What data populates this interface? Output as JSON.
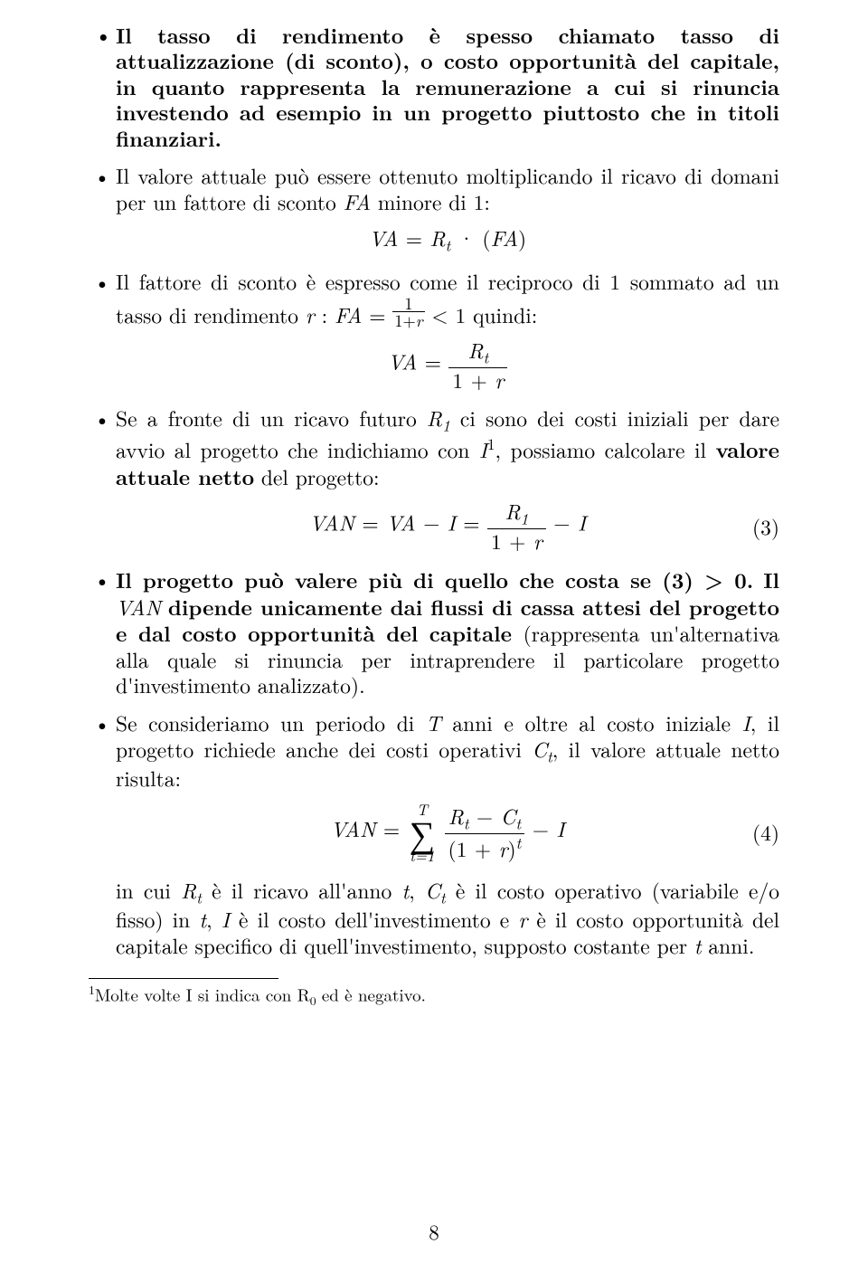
{
  "page": {
    "number": "8",
    "background_color": "#ffffff",
    "text_color": "#000000",
    "body_fontsize_pt": 18,
    "footnote_fontsize_pt": 14
  },
  "bullets": {
    "b1": "Il tasso di rendimento è spesso chiamato tasso di attualizzazione (di sconto), o costo opportunità del capitale, in quanto rappresenta la remunerazione a cui si rinuncia investendo ad esempio in un progetto piuttosto che in titoli finanziari.",
    "b2_pre": "Il valore attuale può essere ottenuto moltiplicando il ricavo di domani per un fattore di sconto ",
    "b2_fa": "FA",
    "b2_post": " minore di 1:",
    "b3_pre": "Il fattore di sconto è espresso come il reciproco di 1 sommato ad un tasso di rendimento ",
    "b3_mid": " quindi:",
    "b4_pre": "Se a fronte di un ricavo futuro ",
    "b4_mid1": " ci sono dei costi iniziali per dare avvio al progetto che indichiamo con ",
    "b4_mid2": ", possiamo calcolare il ",
    "b4_bold": "valore attuale netto",
    "b4_post": " del progetto:",
    "b5_bold1": "Il progetto può valere più di quello che costa se (3) > 0.",
    "b5_bold2": " dipende unicamente dai flussi di cassa attesi del progetto e dal costo opportunità del capitale ",
    "b5_plain": "(rappresenta un'alternativa alla quale si rinuncia per intraprendere il particolare progetto d'investimento analizzato).",
    "b6_pre": "Se consideriamo un periodo di ",
    "b6_mid1": " anni e oltre al costo iniziale ",
    "b6_mid2": ", il progetto richiede anche dei costi operativi ",
    "b6_post": ", il valore attuale netto risulta:",
    "b6_tail_pre": "in cui ",
    "b6_tail_1": " è il ricavo all'anno ",
    "b6_tail_2": " è il costo operativo (variabile e/o fisso) in ",
    "b6_tail_3": " è il costo dell'investimento e ",
    "b6_tail_4": " è il costo opportunità del capitale specifico di quell'investimento, supposto costante per ",
    "b6_tail_5": " anni."
  },
  "math": {
    "VA": "VA",
    "FA": "FA",
    "VAN": "VAN",
    "R": "R",
    "I": "I",
    "C": "C",
    "T": "T",
    "r": "r",
    "t": "t",
    "one": "1",
    "plus": "+",
    "minus": "−",
    "eq": "=",
    "lt": "<",
    "dot": "·",
    "colon": ":",
    "lparen": "(",
    "rparen": ")",
    "comma": ",",
    "Il": "Il ",
    "sum_top": "T",
    "sum_bot": "t=1",
    "sum_sym": "∑"
  },
  "eqnums": {
    "eq3": "(3)",
    "eq4": "(4)"
  },
  "footnote": {
    "mark": "1",
    "text": "Molte volte I si indica con R",
    "sub": "0",
    "text2": " ed è negativo."
  }
}
